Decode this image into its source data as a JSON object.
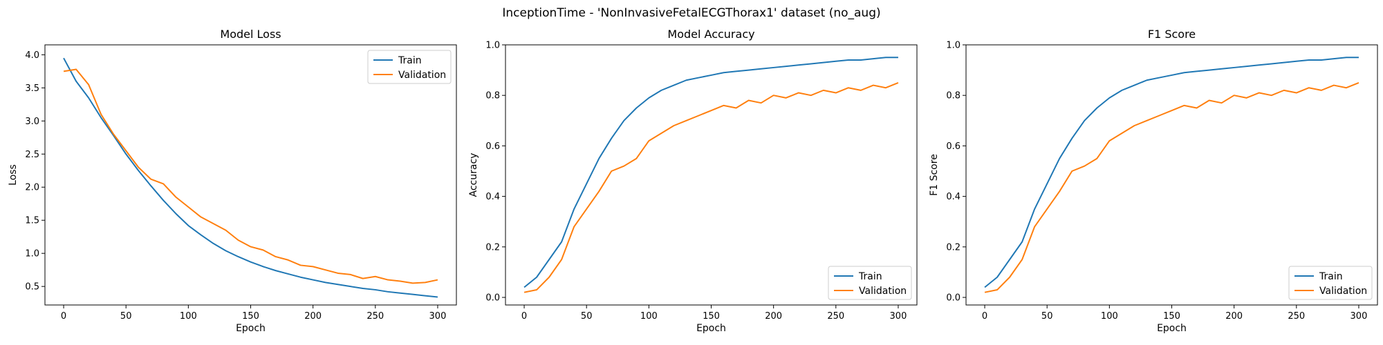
{
  "figure": {
    "title": "InceptionTime - 'NonInvasiveFetalECGThorax1' dataset (no_aug)"
  },
  "colors": {
    "train": "#1f77b4",
    "validation": "#ff7f0e"
  },
  "chart_data": [
    {
      "type": "line",
      "title": "Model Loss",
      "xlabel": "Epoch",
      "ylabel": "Loss",
      "xlim": [
        -15,
        315
      ],
      "ylim": [
        0.22,
        4.15
      ],
      "xticks": [
        0,
        50,
        100,
        150,
        200,
        250,
        300
      ],
      "yticks": [
        0.5,
        1.0,
        1.5,
        2.0,
        2.5,
        3.0,
        3.5,
        4.0
      ],
      "ytick_labels": [
        "0.5",
        "1.0",
        "1.5",
        "2.0",
        "2.5",
        "3.0",
        "3.5",
        "4.0"
      ],
      "legend": "upper right",
      "x": [
        0,
        10,
        20,
        30,
        40,
        50,
        60,
        70,
        80,
        90,
        100,
        110,
        120,
        130,
        140,
        150,
        160,
        170,
        180,
        190,
        200,
        210,
        220,
        230,
        240,
        250,
        260,
        270,
        280,
        290,
        300
      ],
      "series": [
        {
          "name": "Train",
          "values": [
            3.95,
            3.6,
            3.35,
            3.05,
            2.78,
            2.5,
            2.25,
            2.02,
            1.8,
            1.6,
            1.42,
            1.28,
            1.15,
            1.04,
            0.95,
            0.87,
            0.8,
            0.74,
            0.69,
            0.64,
            0.6,
            0.56,
            0.53,
            0.5,
            0.47,
            0.45,
            0.42,
            0.4,
            0.38,
            0.36,
            0.34
          ]
        },
        {
          "name": "Validation",
          "values": [
            3.75,
            3.78,
            3.55,
            3.1,
            2.8,
            2.55,
            2.3,
            2.12,
            2.05,
            1.85,
            1.7,
            1.55,
            1.45,
            1.35,
            1.2,
            1.1,
            1.05,
            0.95,
            0.9,
            0.82,
            0.8,
            0.75,
            0.7,
            0.68,
            0.62,
            0.65,
            0.6,
            0.58,
            0.55,
            0.56,
            0.6
          ]
        }
      ]
    },
    {
      "type": "line",
      "title": "Model Accuracy",
      "xlabel": "Epoch",
      "ylabel": "Accuracy",
      "xlim": [
        -15,
        315
      ],
      "ylim": [
        -0.03,
        1.0
      ],
      "xticks": [
        0,
        50,
        100,
        150,
        200,
        250,
        300
      ],
      "yticks": [
        0.0,
        0.2,
        0.4,
        0.6,
        0.8,
        1.0
      ],
      "ytick_labels": [
        "0.0",
        "0.2",
        "0.4",
        "0.6",
        "0.8",
        "1.0"
      ],
      "legend": "lower right",
      "x": [
        0,
        10,
        20,
        30,
        40,
        50,
        60,
        70,
        80,
        90,
        100,
        110,
        120,
        130,
        140,
        150,
        160,
        170,
        180,
        190,
        200,
        210,
        220,
        230,
        240,
        250,
        260,
        270,
        280,
        290,
        300
      ],
      "series": [
        {
          "name": "Train",
          "values": [
            0.04,
            0.08,
            0.15,
            0.22,
            0.35,
            0.45,
            0.55,
            0.63,
            0.7,
            0.75,
            0.79,
            0.82,
            0.84,
            0.86,
            0.87,
            0.88,
            0.89,
            0.895,
            0.9,
            0.905,
            0.91,
            0.915,
            0.92,
            0.925,
            0.93,
            0.935,
            0.94,
            0.94,
            0.945,
            0.95,
            0.95
          ]
        },
        {
          "name": "Validation",
          "values": [
            0.02,
            0.03,
            0.08,
            0.15,
            0.28,
            0.35,
            0.42,
            0.5,
            0.52,
            0.55,
            0.62,
            0.65,
            0.68,
            0.7,
            0.72,
            0.74,
            0.76,
            0.75,
            0.78,
            0.77,
            0.8,
            0.79,
            0.81,
            0.8,
            0.82,
            0.81,
            0.83,
            0.82,
            0.84,
            0.83,
            0.85
          ]
        }
      ]
    },
    {
      "type": "line",
      "title": "F1 Score",
      "xlabel": "Epoch",
      "ylabel": "F1 Score",
      "xlim": [
        -15,
        315
      ],
      "ylim": [
        -0.03,
        1.0
      ],
      "xticks": [
        0,
        50,
        100,
        150,
        200,
        250,
        300
      ],
      "yticks": [
        0.0,
        0.2,
        0.4,
        0.6,
        0.8,
        1.0
      ],
      "ytick_labels": [
        "0.0",
        "0.2",
        "0.4",
        "0.6",
        "0.8",
        "1.0"
      ],
      "legend": "lower right",
      "x": [
        0,
        10,
        20,
        30,
        40,
        50,
        60,
        70,
        80,
        90,
        100,
        110,
        120,
        130,
        140,
        150,
        160,
        170,
        180,
        190,
        200,
        210,
        220,
        230,
        240,
        250,
        260,
        270,
        280,
        290,
        300
      ],
      "series": [
        {
          "name": "Train",
          "values": [
            0.04,
            0.08,
            0.15,
            0.22,
            0.35,
            0.45,
            0.55,
            0.63,
            0.7,
            0.75,
            0.79,
            0.82,
            0.84,
            0.86,
            0.87,
            0.88,
            0.89,
            0.895,
            0.9,
            0.905,
            0.91,
            0.915,
            0.92,
            0.925,
            0.93,
            0.935,
            0.94,
            0.94,
            0.945,
            0.95,
            0.95
          ]
        },
        {
          "name": "Validation",
          "values": [
            0.02,
            0.03,
            0.08,
            0.15,
            0.28,
            0.35,
            0.42,
            0.5,
            0.52,
            0.55,
            0.62,
            0.65,
            0.68,
            0.7,
            0.72,
            0.74,
            0.76,
            0.75,
            0.78,
            0.77,
            0.8,
            0.79,
            0.81,
            0.8,
            0.82,
            0.81,
            0.83,
            0.82,
            0.84,
            0.83,
            0.85
          ]
        }
      ]
    }
  ]
}
